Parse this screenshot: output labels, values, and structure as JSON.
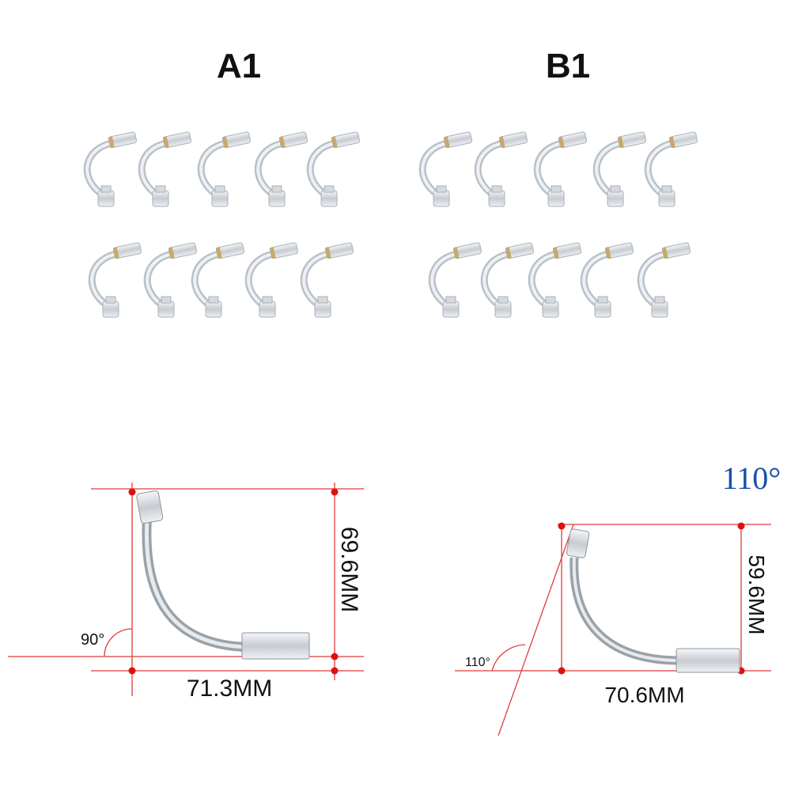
{
  "labels": {
    "left": "A1",
    "right": "B1"
  },
  "diagram_a": {
    "height": "69.6MM",
    "width": "71.3MM",
    "angle": "90°"
  },
  "diagram_b": {
    "heading": "110°",
    "height": "59.6MM",
    "width": "70.6MM",
    "angle": "110°"
  }
}
